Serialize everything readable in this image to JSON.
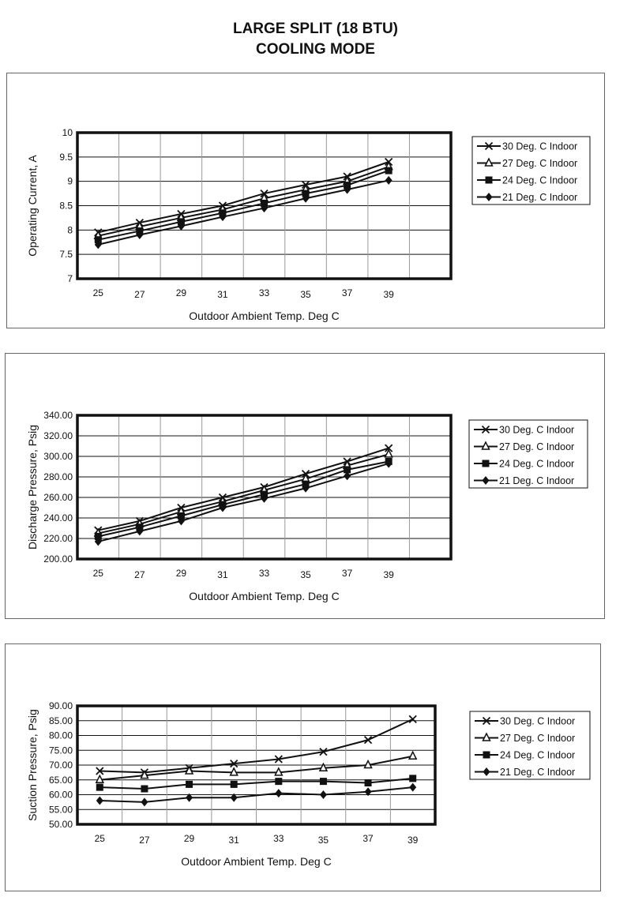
{
  "title_line1": "LARGE SPLIT (18 BTU)",
  "title_line2": "COOLING MODE",
  "colors": {
    "line": "#111111",
    "grid": "#999999",
    "frame": "#111111"
  },
  "chart_data": [
    {
      "type": "line",
      "xlabel": "Outdoor Ambient Temp. Deg C",
      "ylabel": "Operating Current, A",
      "ylim": [
        7,
        10
      ],
      "yticks": [
        7,
        7.5,
        8,
        8.5,
        9,
        9.5,
        10
      ],
      "ytick_labels": [
        "7",
        "7.5",
        "8",
        "8.5",
        "9",
        "9.5",
        "10"
      ],
      "categories": [
        "25",
        "27",
        "29",
        "31",
        "33",
        "35",
        "37",
        "39"
      ],
      "grid": true,
      "legend_position": "right",
      "series": [
        {
          "name": "30 Deg. C Indoor",
          "marker": "x",
          "values": [
            7.95,
            8.15,
            8.33,
            8.5,
            8.75,
            8.93,
            9.1,
            9.4
          ]
        },
        {
          "name": "27 Deg. C Indoor",
          "marker": "triangle",
          "values": [
            7.88,
            8.07,
            8.25,
            8.42,
            8.65,
            8.83,
            9.0,
            9.3
          ]
        },
        {
          "name": "24 Deg. C Indoor",
          "marker": "square",
          "values": [
            7.8,
            7.98,
            8.17,
            8.35,
            8.55,
            8.75,
            8.92,
            9.22
          ]
        },
        {
          "name": "21 Deg. C Indoor",
          "marker": "diamond",
          "values": [
            7.7,
            7.9,
            8.08,
            8.27,
            8.45,
            8.65,
            8.83,
            9.02
          ]
        }
      ]
    },
    {
      "type": "line",
      "xlabel": "Outdoor Ambient Temp. Deg C",
      "ylabel": "Discharge Pressure, Psig",
      "ylim": [
        200,
        340
      ],
      "yticks": [
        200,
        220,
        240,
        260,
        280,
        300,
        320,
        340
      ],
      "ytick_labels": [
        "200.00",
        "220.00",
        "240.00",
        "260.00",
        "280.00",
        "300.00",
        "320.00",
        "340.00"
      ],
      "categories": [
        "25",
        "27",
        "29",
        "31",
        "33",
        "35",
        "37",
        "39"
      ],
      "grid": true,
      "legend_position": "right",
      "series": [
        {
          "name": "30 Deg. C Indoor",
          "marker": "x",
          "values": [
            228,
            237,
            250,
            260,
            270,
            283,
            295,
            308
          ]
        },
        {
          "name": "27 Deg. C Indoor",
          "marker": "triangle",
          "values": [
            225,
            234,
            246,
            256,
            267,
            278,
            291,
            302
          ]
        },
        {
          "name": "24 Deg. C Indoor",
          "marker": "square",
          "values": [
            222,
            231,
            242,
            253,
            263,
            273,
            287,
            295
          ]
        },
        {
          "name": "21 Deg. C Indoor",
          "marker": "diamond",
          "values": [
            217,
            227,
            237,
            250,
            259,
            269,
            281,
            293
          ]
        }
      ]
    },
    {
      "type": "line",
      "xlabel": "Outdoor Ambient Temp. Deg C",
      "ylabel": "Suction Pressure, Psig",
      "ylim": [
        50,
        90
      ],
      "yticks": [
        50,
        55,
        60,
        65,
        70,
        75,
        80,
        85,
        90
      ],
      "ytick_labels": [
        "50.00",
        "55.00",
        "60.00",
        "65.00",
        "70.00",
        "75.00",
        "80.00",
        "85.00",
        "90.00"
      ],
      "categories": [
        "25",
        "27",
        "29",
        "31",
        "33",
        "35",
        "37",
        "39"
      ],
      "grid": true,
      "legend_position": "right",
      "series": [
        {
          "name": "30 Deg. C Indoor",
          "marker": "x",
          "values": [
            68,
            67.5,
            69,
            70.5,
            72,
            74.5,
            78.5,
            85.5
          ]
        },
        {
          "name": "27 Deg. C Indoor",
          "marker": "triangle",
          "values": [
            65,
            66.5,
            68,
            67.5,
            67.5,
            69,
            70,
            73
          ]
        },
        {
          "name": "24 Deg. C Indoor",
          "marker": "square",
          "values": [
            62.5,
            62,
            63.5,
            63.5,
            64.5,
            64.5,
            64,
            65.5
          ]
        },
        {
          "name": "21 Deg. C Indoor",
          "marker": "diamond",
          "values": [
            58,
            57.5,
            59,
            59,
            60.5,
            60,
            61,
            62.5
          ]
        }
      ]
    }
  ]
}
